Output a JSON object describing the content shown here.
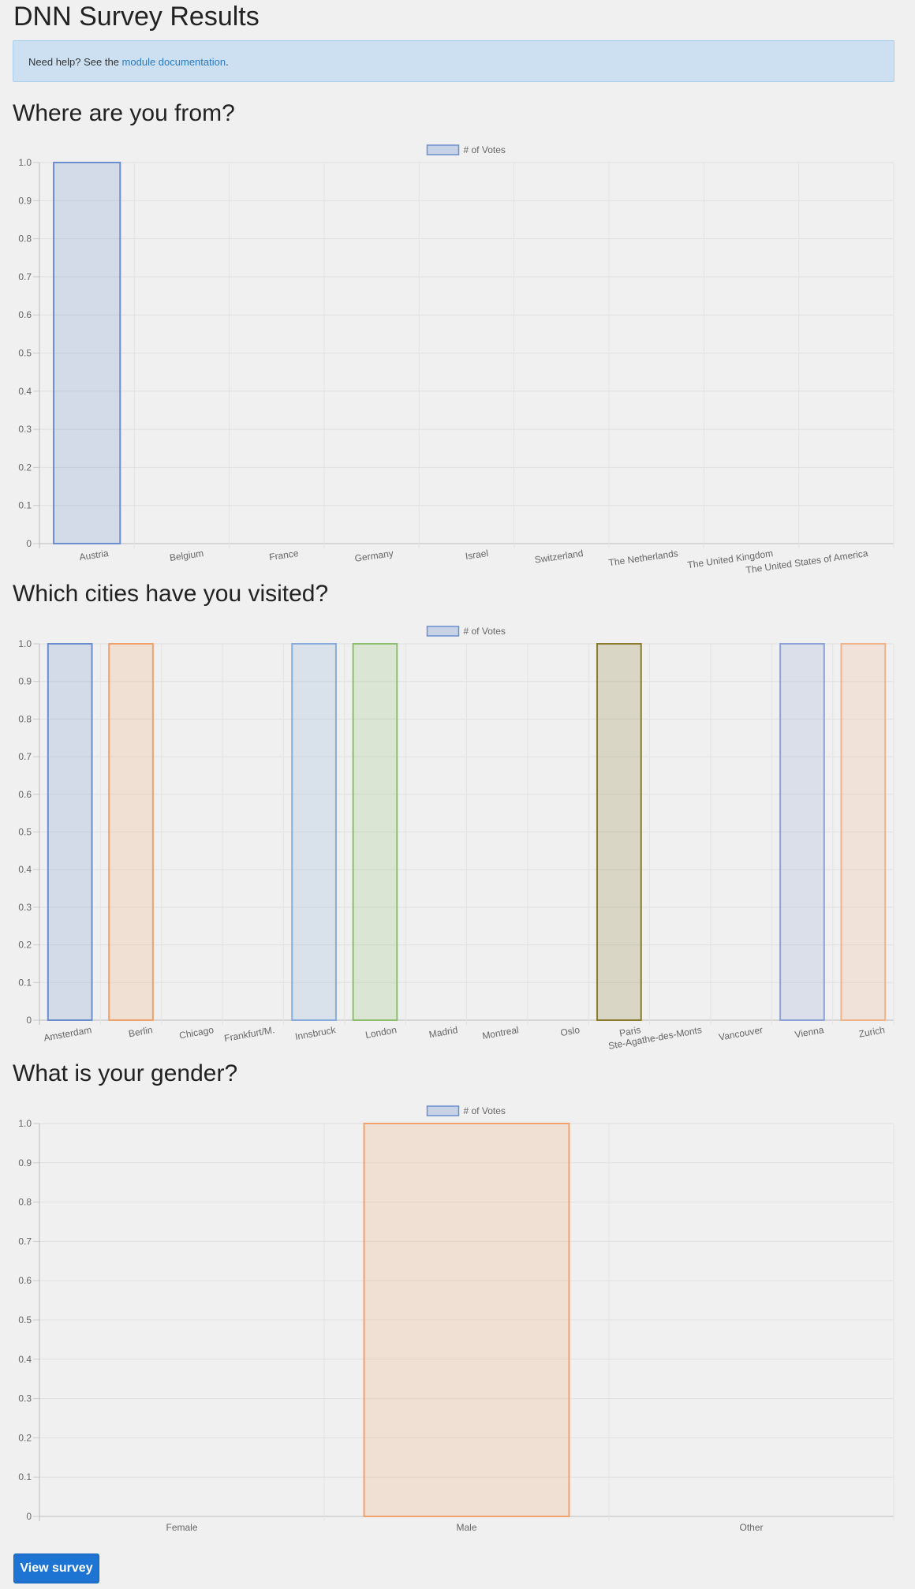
{
  "page": {
    "title": "DNN Survey Results",
    "help_prefix": "Need help? See the ",
    "help_link": "module documentation",
    "help_suffix": ".",
    "view_survey_label": "View survey"
  },
  "chart_data": [
    {
      "type": "bar",
      "title": "Where are you from?",
      "legend": "# of Votes",
      "ylim": [
        0,
        1
      ],
      "yticks": [
        "0",
        "0.1",
        "0.2",
        "0.3",
        "0.4",
        "0.5",
        "0.6",
        "0.7",
        "0.8",
        "0.9",
        "1.0"
      ],
      "grid": true,
      "legend_position": "top-center",
      "categories": [
        "Austria",
        "Belgium",
        "France",
        "Germany",
        "Israel",
        "Switzerland",
        "The Netherlands",
        "The United Kingdom",
        "The United States of America"
      ],
      "values": [
        1,
        0,
        0,
        0,
        0,
        0,
        0,
        0,
        0
      ],
      "colors": [
        "#6c8ecf",
        "#6c8ecf",
        "#6c8ecf",
        "#6c8ecf",
        "#6c8ecf",
        "#6c8ecf",
        "#6c8ecf",
        "#6c8ecf",
        "#6c8ecf"
      ]
    },
    {
      "type": "bar",
      "title": "Which cities have you visited?",
      "legend": "# of Votes",
      "ylim": [
        0,
        1
      ],
      "yticks": [
        "0",
        "0.1",
        "0.2",
        "0.3",
        "0.4",
        "0.5",
        "0.6",
        "0.7",
        "0.8",
        "0.9",
        "1.0"
      ],
      "grid": true,
      "legend_position": "top-center",
      "categories": [
        "Amsterdam",
        "Berlin",
        "Chicago",
        "Frankfurt/M.",
        "Innsbruck",
        "London",
        "Madrid",
        "Montreal",
        "Oslo",
        "Paris",
        "Ste-Agathe-des-Monts",
        "Vancouver",
        "Vienna",
        "Zurich"
      ],
      "values": [
        1,
        1,
        0,
        0,
        1,
        1,
        0,
        0,
        0,
        1,
        0,
        0,
        1,
        1
      ],
      "colors": [
        "#6c8ecf",
        "#f0a26c",
        "#6c8ecf",
        "#6c8ecf",
        "#89acdb",
        "#8dbf6e",
        "#6c8ecf",
        "#6c8ecf",
        "#6c8ecf",
        "#8a7b2e",
        "#6c8ecf",
        "#6c8ecf",
        "#8ea2d6",
        "#f1b38a"
      ]
    },
    {
      "type": "bar",
      "title": "What is your gender?",
      "legend": "# of Votes",
      "ylim": [
        0,
        1
      ],
      "yticks": [
        "0",
        "0.1",
        "0.2",
        "0.3",
        "0.4",
        "0.5",
        "0.6",
        "0.7",
        "0.8",
        "0.9",
        "1.0"
      ],
      "grid": true,
      "legend_position": "top-center",
      "categories": [
        "Female",
        "Male",
        "Other"
      ],
      "values": [
        0,
        1,
        0
      ],
      "colors": [
        "#6c8ecf",
        "#f0a26c",
        "#6c8ecf"
      ]
    }
  ]
}
